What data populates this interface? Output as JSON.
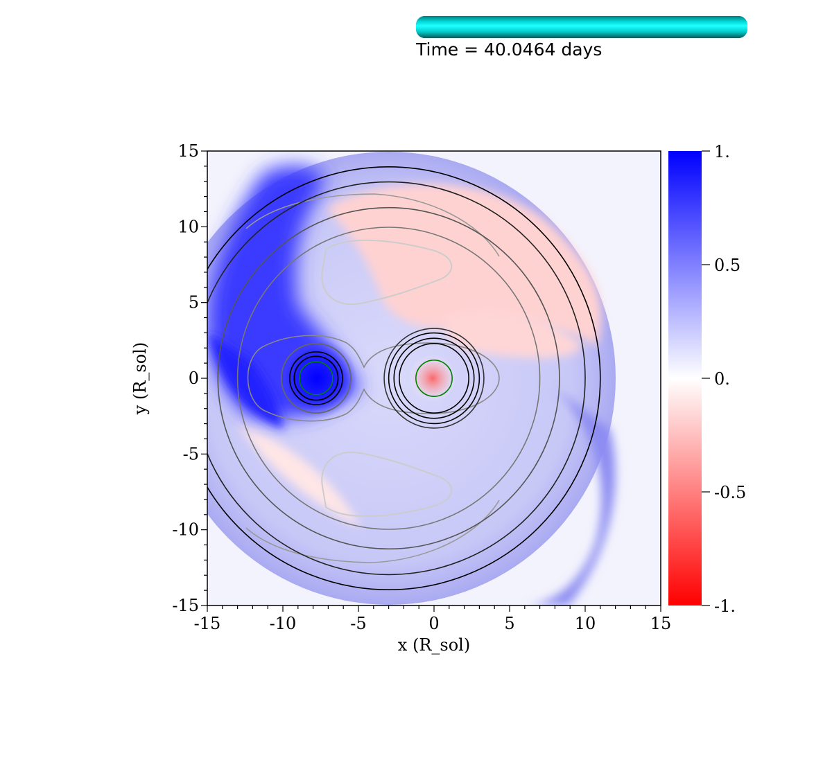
{
  "time_bar": {
    "label": "Time = 40.0464 days",
    "progress": 1.0,
    "color": "#00e5e5"
  },
  "chart_data": {
    "type": "heatmap",
    "title": "",
    "xlabel": "x (R_sol)",
    "ylabel": "y (R_sol)",
    "xlim": [
      -15,
      15
    ],
    "ylim": [
      -15,
      15
    ],
    "x_ticks": [
      -15,
      -10,
      -5,
      0,
      5,
      10,
      15
    ],
    "y_ticks": [
      -15,
      -10,
      -5,
      0,
      5,
      10,
      15
    ],
    "x_tick_labels": [
      "-15",
      "-10",
      "-5",
      "0",
      "5",
      "10",
      "15"
    ],
    "y_tick_labels": [
      "-15",
      "-10",
      "-5",
      "0",
      "5",
      "10",
      "15"
    ],
    "colorbar": {
      "min": -1,
      "max": 1,
      "ticks": [
        1,
        0.5,
        0,
        -0.5,
        -1
      ],
      "tick_labels": [
        "1.",
        "0.5",
        "0.",
        "-0.5",
        "-1."
      ],
      "high_color": "#0000ff",
      "mid_color": "#ffffff",
      "low_color": "#ff0000"
    },
    "stars": [
      {
        "name": "primary",
        "center": [
          -7.8,
          0.0
        ],
        "radius": 1.1,
        "value": 1.0
      },
      {
        "name": "companion",
        "center": [
          0.0,
          0.0
        ],
        "radius": 1.2,
        "value": -0.3
      }
    ],
    "contours": {
      "outer_circles": [
        {
          "center": [
            -3.0,
            0.0
          ],
          "radius": 14.0,
          "color": "#000000"
        },
        {
          "center": [
            -3.0,
            0.0
          ],
          "radius": 13.0,
          "color": "#222222"
        },
        {
          "center": [
            -3.0,
            0.0
          ],
          "radius": 11.3,
          "color": "#555555"
        },
        {
          "center": [
            -3.0,
            0.0
          ],
          "radius": 10.0,
          "color": "#777777"
        }
      ],
      "primary_circles": [
        {
          "radius": 2.3,
          "color": "#666666"
        },
        {
          "radius": 1.75,
          "color": "#000000"
        },
        {
          "radius": 1.45,
          "color": "#000000"
        }
      ],
      "companion_circles": [
        {
          "radius": 3.3,
          "color": "#333333"
        },
        {
          "radius": 3.0,
          "color": "#000000"
        },
        {
          "radius": 2.65,
          "color": "#000000"
        },
        {
          "radius": 2.3,
          "color": "#000000"
        }
      ],
      "star_surface_color": "#008000",
      "lagrange_lobe_color": "#cccccc"
    }
  }
}
